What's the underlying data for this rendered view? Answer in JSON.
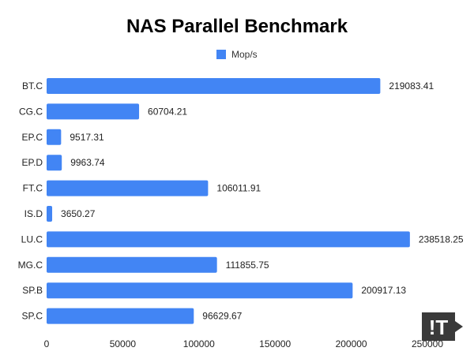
{
  "chart_data": {
    "type": "bar",
    "orientation": "horizontal",
    "title": "NAS Parallel Benchmark",
    "categories": [
      "BT.C",
      "CG.C",
      "EP.C",
      "EP.D",
      "FT.C",
      "IS.D",
      "LU.C",
      "MG.C",
      "SP.B",
      "SP.C"
    ],
    "series": [
      {
        "name": "Mop/s",
        "values": [
          219083.41,
          60704.21,
          9517.31,
          9963.74,
          106011.91,
          3650.27,
          238518.25,
          111855.75,
          200917.13,
          96629.67
        ],
        "labels": [
          "219083.41",
          "60704.21",
          "9517.31",
          "9963.74",
          "106011.91",
          "3650.27",
          "238518.25",
          "111855.75",
          "200917.13",
          "96629.67"
        ]
      }
    ],
    "xlim": [
      0,
      250000
    ],
    "xticks": [
      0,
      50000,
      100000,
      150000,
      200000,
      250000
    ],
    "xtick_labels": [
      "0",
      "50000",
      "100000",
      "150000",
      "200000",
      "250000"
    ],
    "legend_position": "top-center",
    "grid": false,
    "bar_color": "#4285f4"
  },
  "watermark": {
    "text": "!T",
    "color": "#3a3a3a"
  }
}
